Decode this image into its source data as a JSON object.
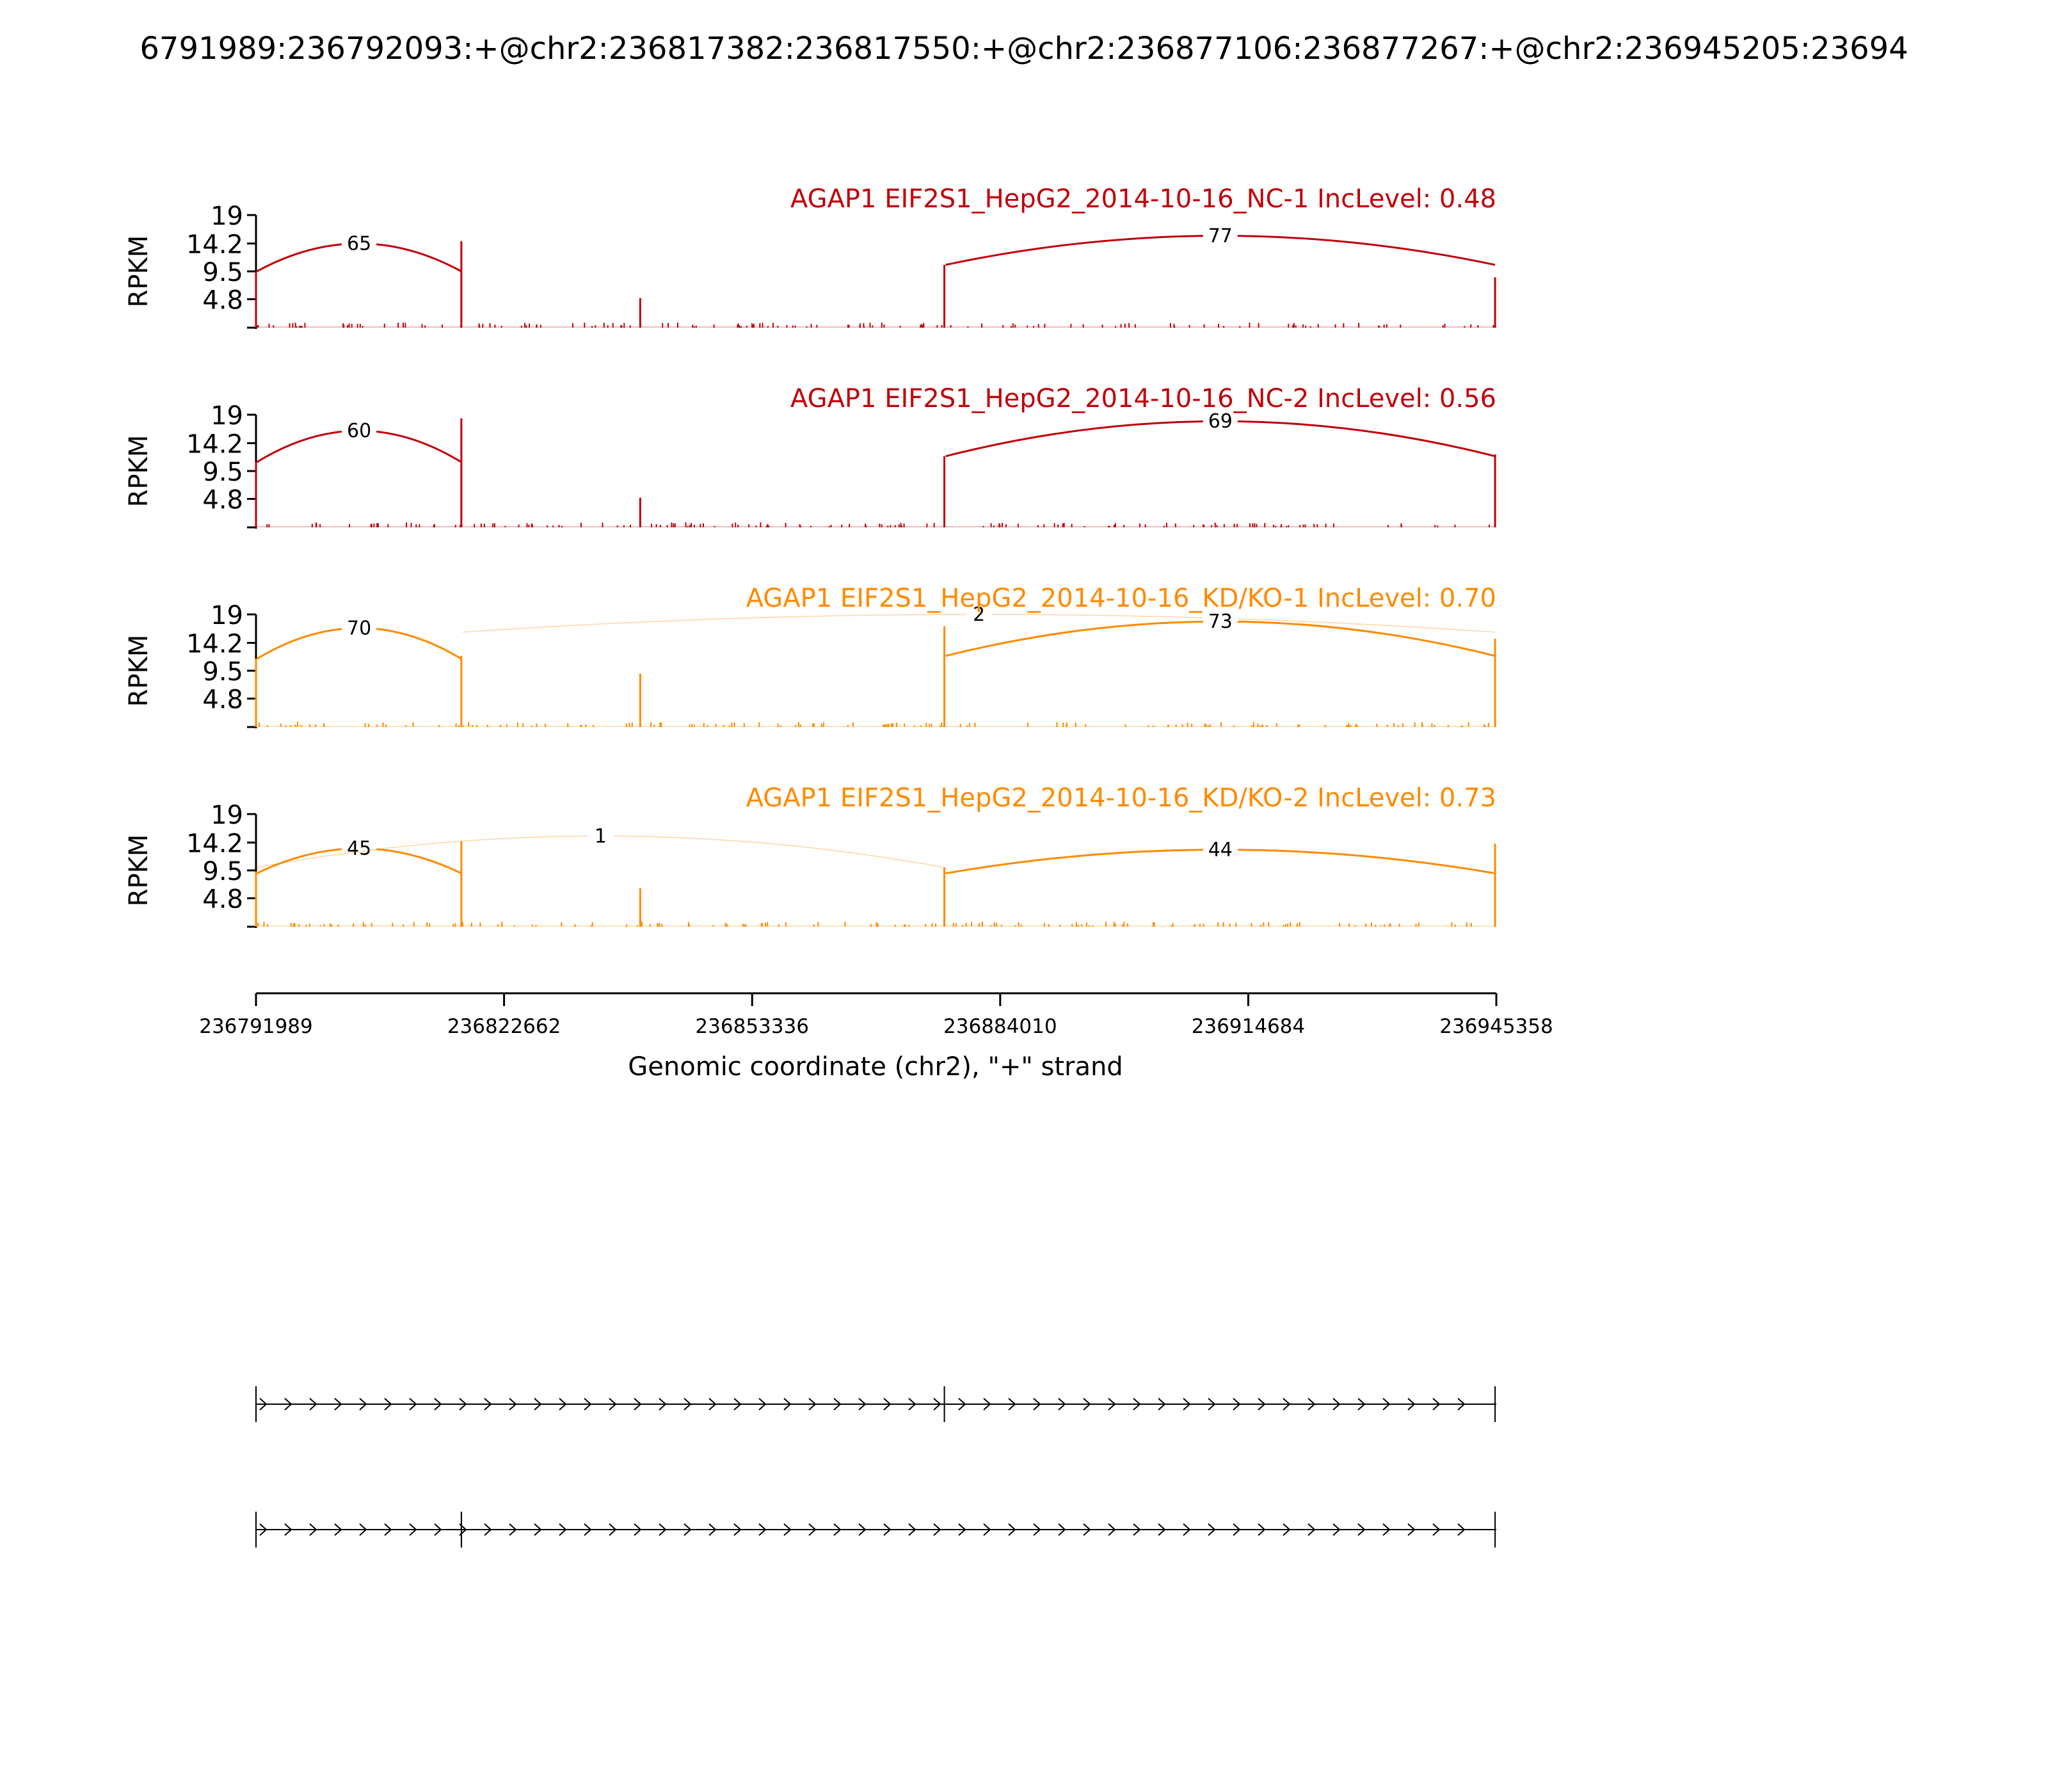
{
  "figure": {
    "title": "6791989:236792093:+@chr2:236817382:236817550:+@chr2:236877106:236877267:+@chr2:236945205:23694"
  },
  "colors": {
    "nc": "#c0000b",
    "kd": "#ff8a00",
    "axis": "#000000",
    "text": "#000000"
  },
  "chart_data": {
    "type": "sashimi",
    "chromosome": "chr2",
    "strand": "+",
    "xlabel": "Genomic coordinate (chr2), \"+\" strand",
    "xlim": [
      236791989,
      236945358
    ],
    "xticks": [
      236791989,
      236822662,
      236853336,
      236884010,
      236914684,
      236945358
    ],
    "xtick_labels": [
      "236791989",
      "236822662",
      "236853336",
      "236884010",
      "236914684",
      "236945358"
    ],
    "ylabel": "RPKM",
    "ylim": [
      0,
      19
    ],
    "yticks": [
      4.8,
      9.5,
      14.2,
      19
    ],
    "ytick_labels": [
      "4.8",
      "9.5",
      "14.2",
      "19"
    ],
    "exons": [
      {
        "start": 236791989,
        "end": 236792093
      },
      {
        "start": 236817382,
        "end": 236817550
      },
      {
        "start": 236839500,
        "end": 236839600
      },
      {
        "start": 236877106,
        "end": 236877267
      },
      {
        "start": 236945205,
        "end": 236945358
      }
    ],
    "tracks": [
      {
        "label": "AGAP1 EIF2S1_HepG2_2014-10-16_NC-1 IncLevel: 0.48",
        "color": "nc",
        "coverage": [
          {
            "x": 236791989,
            "y": 9.5
          },
          {
            "x": 236817382,
            "y": 14.6
          },
          {
            "x": 236839500,
            "y": 5.0
          },
          {
            "x": 236877106,
            "y": 10.6
          },
          {
            "x": 236945205,
            "y": 8.5
          }
        ],
        "junctions": [
          {
            "start": 236792093,
            "end": 236817382,
            "count": "65",
            "y0": 9.5,
            "peak": 14.2,
            "alpha": 1.0,
            "width": 3
          },
          {
            "start": 236877267,
            "end": 236945205,
            "count": "77",
            "y0": 10.6,
            "peak": 15.5,
            "alpha": 1.0,
            "width": 3
          }
        ]
      },
      {
        "label": "AGAP1 EIF2S1_HepG2_2014-10-16_NC-2 IncLevel: 0.56",
        "color": "nc",
        "coverage": [
          {
            "x": 236791989,
            "y": 11.0
          },
          {
            "x": 236817382,
            "y": 18.4
          },
          {
            "x": 236839500,
            "y": 5.0
          },
          {
            "x": 236877106,
            "y": 12.0
          },
          {
            "x": 236945205,
            "y": 12.3
          }
        ],
        "junctions": [
          {
            "start": 236792093,
            "end": 236817382,
            "count": "60",
            "y0": 11.0,
            "peak": 16.3,
            "alpha": 1.0,
            "width": 3
          },
          {
            "start": 236877267,
            "end": 236945205,
            "count": "69",
            "y0": 12.0,
            "peak": 17.9,
            "alpha": 1.0,
            "width": 3
          }
        ]
      },
      {
        "label": "AGAP1 EIF2S1_HepG2_2014-10-16_KD/KO-1 IncLevel: 0.70",
        "color": "kd",
        "coverage": [
          {
            "x": 236791989,
            "y": 11.5
          },
          {
            "x": 236817382,
            "y": 12.0
          },
          {
            "x": 236839500,
            "y": 9.0
          },
          {
            "x": 236877106,
            "y": 17.0
          },
          {
            "x": 236945205,
            "y": 14.9
          }
        ],
        "junctions": [
          {
            "start": 236792093,
            "end": 236817382,
            "count": "70",
            "y0": 11.5,
            "peak": 16.7,
            "alpha": 1.0,
            "width": 3
          },
          {
            "start": 236817550,
            "end": 236945205,
            "count": "2",
            "y0": 16.0,
            "peak": 19.0,
            "alpha": 0.35,
            "width": 1.5
          },
          {
            "start": 236877267,
            "end": 236945205,
            "count": "73",
            "y0": 12.0,
            "peak": 17.8,
            "alpha": 1.0,
            "width": 3
          }
        ]
      },
      {
        "label": "AGAP1 EIF2S1_HepG2_2014-10-16_KD/KO-2 IncLevel: 0.73",
        "color": "kd",
        "coverage": [
          {
            "x": 236791989,
            "y": 9.3
          },
          {
            "x": 236817382,
            "y": 14.4
          },
          {
            "x": 236839500,
            "y": 6.5
          },
          {
            "x": 236877106,
            "y": 10.0
          },
          {
            "x": 236945205,
            "y": 14.0
          }
        ],
        "junctions": [
          {
            "start": 236792093,
            "end": 236817382,
            "count": "45",
            "y0": 9.0,
            "peak": 13.2,
            "alpha": 1.0,
            "width": 3
          },
          {
            "start": 236792093,
            "end": 236877106,
            "count": "1",
            "y0": 10.0,
            "peak": 15.3,
            "alpha": 0.35,
            "width": 1.5
          },
          {
            "start": 236877267,
            "end": 236945205,
            "count": "44",
            "y0": 9.0,
            "peak": 13.0,
            "alpha": 1.0,
            "width": 3
          }
        ]
      }
    ],
    "isoforms": [
      {
        "exons": [
          [
            236791989,
            236792093
          ],
          [
            236877106,
            236877267
          ],
          [
            236945205,
            236945358
          ]
        ]
      },
      {
        "exons": [
          [
            236791989,
            236792093
          ],
          [
            236817382,
            236817550
          ],
          [
            236945205,
            236945358
          ]
        ]
      }
    ]
  }
}
